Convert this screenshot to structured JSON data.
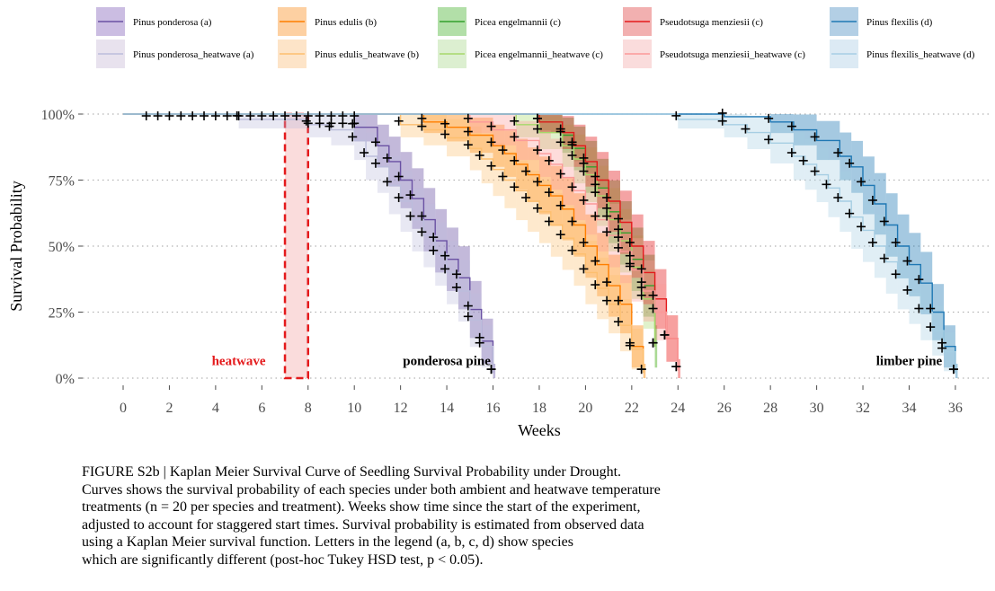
{
  "chart_data": {
    "type": "line",
    "subtype": "kaplan-meier step survival curves with confidence bands",
    "xlabel": "Weeks",
    "ylabel": "Survival Probability",
    "xlim": [
      -2,
      37.5
    ],
    "ylim": [
      0,
      1
    ],
    "x_ticks": [
      0,
      2,
      4,
      6,
      8,
      10,
      12,
      14,
      16,
      18,
      20,
      22,
      24,
      26,
      28,
      30,
      32,
      34,
      36
    ],
    "y_ticks": [
      {
        "value": 0,
        "label": "0%"
      },
      {
        "value": 0.25,
        "label": "25%"
      },
      {
        "value": 0.5,
        "label": "50%"
      },
      {
        "value": 0.75,
        "label": "75%"
      },
      {
        "value": 1,
        "label": "100%"
      }
    ],
    "grid": "horizontal dotted",
    "legend_position": "top",
    "heatwave_window": {
      "start": 7.0,
      "end": 8.0,
      "label": "heatwave"
    },
    "annotations": [
      {
        "text": "heatwave",
        "x": 5.0,
        "y": 0.05,
        "color": "#e41a1c"
      },
      {
        "text": "ponderosa pine",
        "x": 14.0,
        "y": 0.05,
        "color": "#000000"
      },
      {
        "text": "limber pine",
        "x": 34.0,
        "y": 0.05,
        "color": "#000000"
      }
    ],
    "series": [
      {
        "name": "Pinus ponderosa (a)",
        "color": "#6a51a3",
        "treatment": "ambient",
        "x": [
          0,
          10,
          11,
          11.5,
          12,
          12.5,
          13,
          13.5,
          14,
          14.5,
          15,
          15.5,
          16
        ],
        "y": [
          1.0,
          0.95,
          0.88,
          0.82,
          0.75,
          0.68,
          0.6,
          0.52,
          0.45,
          0.38,
          0.26,
          0.14,
          0.02
        ]
      },
      {
        "name": "Pinus ponderosa_heatwave (a)",
        "color": "#bcbddc",
        "treatment": "heatwave",
        "x": [
          0,
          5,
          8,
          9,
          10,
          10.5,
          11,
          11.5,
          12,
          12.5,
          13,
          13.5,
          14,
          14.5,
          15,
          15.5,
          16
        ],
        "y": [
          1.0,
          0.98,
          0.96,
          0.94,
          0.9,
          0.84,
          0.8,
          0.73,
          0.67,
          0.6,
          0.54,
          0.47,
          0.4,
          0.33,
          0.22,
          0.12,
          0.02
        ]
      },
      {
        "name": "Pinus edulis (b)",
        "color": "#ff7f00",
        "treatment": "ambient",
        "x": [
          0,
          13,
          14,
          15,
          16,
          16.5,
          17,
          17.5,
          18,
          18.5,
          19,
          19.5,
          20,
          20.5,
          21,
          21.5,
          22,
          22.5
        ],
        "y": [
          1.0,
          0.97,
          0.95,
          0.92,
          0.88,
          0.85,
          0.81,
          0.77,
          0.73,
          0.69,
          0.64,
          0.58,
          0.5,
          0.43,
          0.35,
          0.28,
          0.12,
          0.02
        ]
      },
      {
        "name": "Pinus edulis_heatwave (b)",
        "color": "#fdbf6f",
        "treatment": "heatwave",
        "x": [
          0,
          12,
          13,
          14,
          15,
          15.5,
          16,
          16.5,
          17,
          17.5,
          18,
          18.5,
          19,
          19.5,
          20,
          20.5,
          21,
          21.5,
          22,
          22.5
        ],
        "y": [
          1.0,
          0.96,
          0.94,
          0.91,
          0.87,
          0.83,
          0.79,
          0.75,
          0.71,
          0.67,
          0.63,
          0.58,
          0.53,
          0.47,
          0.4,
          0.34,
          0.28,
          0.2,
          0.11,
          0.02
        ]
      },
      {
        "name": "Picea engelmannii (c)",
        "color": "#33a02c",
        "treatment": "ambient",
        "x": [
          0,
          18,
          19,
          19.5,
          20,
          20.5,
          21,
          21.5,
          22,
          22.5,
          23
        ],
        "y": [
          1.0,
          0.97,
          0.92,
          0.87,
          0.8,
          0.72,
          0.63,
          0.55,
          0.45,
          0.35,
          0.12
        ]
      },
      {
        "name": "Picea engelmannii_heatwave (c)",
        "color": "#a6d96a",
        "treatment": "heatwave",
        "x": [
          0,
          17,
          18,
          19,
          19.5,
          20,
          20.5,
          21,
          21.5,
          22,
          22.5,
          23
        ],
        "y": [
          1.0,
          0.96,
          0.93,
          0.88,
          0.83,
          0.77,
          0.69,
          0.6,
          0.52,
          0.42,
          0.3,
          0.12
        ]
      },
      {
        "name": "Pseudotsuga menziesii (c)",
        "color": "#e31a1c",
        "treatment": "ambient",
        "x": [
          0,
          18,
          19,
          19.5,
          20,
          20.5,
          21,
          21.5,
          22,
          22.5,
          23,
          23.5,
          24
        ],
        "y": [
          1.0,
          0.97,
          0.93,
          0.88,
          0.82,
          0.75,
          0.67,
          0.59,
          0.5,
          0.4,
          0.3,
          0.15,
          0.03
        ]
      },
      {
        "name": "Pseudotsuga menziesii_heatwave (c)",
        "color": "#fb9a99",
        "treatment": "heatwave",
        "x": [
          0,
          15,
          16,
          17,
          18,
          18.5,
          19,
          19.5,
          20,
          20.5,
          21,
          21.5,
          22,
          22.5,
          23,
          23.5,
          24
        ],
        "y": [
          1.0,
          0.97,
          0.94,
          0.9,
          0.85,
          0.81,
          0.76,
          0.71,
          0.66,
          0.6,
          0.54,
          0.48,
          0.41,
          0.33,
          0.25,
          0.15,
          0.03
        ]
      },
      {
        "name": "Pinus flexilis (d)",
        "color": "#1f78b4",
        "treatment": "ambient",
        "x": [
          0,
          26,
          28,
          29,
          30,
          31,
          31.5,
          32,
          32.5,
          33,
          33.5,
          34,
          34.5,
          35,
          35.5,
          36
        ],
        "y": [
          1.0,
          0.99,
          0.97,
          0.94,
          0.9,
          0.84,
          0.8,
          0.73,
          0.66,
          0.58,
          0.5,
          0.43,
          0.36,
          0.25,
          0.12,
          0.02
        ]
      },
      {
        "name": "Pinus flexilis_heatwave (d)",
        "color": "#a6cee3",
        "treatment": "heatwave",
        "x": [
          0,
          24,
          26,
          27,
          28,
          29,
          29.5,
          30,
          30.5,
          31,
          31.5,
          32,
          32.5,
          33,
          33.5,
          34,
          34.5,
          35,
          35.5,
          36
        ],
        "y": [
          1.0,
          0.98,
          0.96,
          0.93,
          0.89,
          0.84,
          0.81,
          0.77,
          0.72,
          0.67,
          0.61,
          0.56,
          0.5,
          0.44,
          0.38,
          0.32,
          0.25,
          0.18,
          0.1,
          0.02
        ]
      }
    ]
  },
  "legend": {
    "items": [
      {
        "label": "Pinus ponderosa (a)",
        "color": "#6a51a3",
        "fill": "#cbbde2"
      },
      {
        "label": "Pinus edulis (b)",
        "color": "#ff7f00",
        "fill": "#fdd0a2"
      },
      {
        "label": "Picea engelmannii (c)",
        "color": "#33a02c",
        "fill": "#b2dfa8"
      },
      {
        "label": "Pseudotsuga menziesii (c)",
        "color": "#e31a1c",
        "fill": "#f2b0b0"
      },
      {
        "label": "Pinus flexilis (d)",
        "color": "#1f78b4",
        "fill": "#b3cfe5"
      },
      {
        "label": "Pinus ponderosa_heatwave (a)",
        "color": "#bcbddc",
        "fill": "#e8e2ee"
      },
      {
        "label": "Pinus edulis_heatwave (b)",
        "color": "#fdbf6f",
        "fill": "#fde4c8"
      },
      {
        "label": "Picea engelmannii_heatwave (c)",
        "color": "#a6d96a",
        "fill": "#dcefd0"
      },
      {
        "label": "Pseudotsuga menziesii_heatwave (c)",
        "color": "#fb9a99",
        "fill": "#fadcdc"
      },
      {
        "label": "Pinus flexilis_heatwave (d)",
        "color": "#a6cee3",
        "fill": "#dceaf4"
      }
    ]
  },
  "caption": {
    "lines": [
      "FIGURE S2b | Kaplan Meier Survival Curve of Seedling Survival Probability under Drought.",
      "Curves shows the survival probability of each species under both ambient and heatwave temperature",
      "treatments (n = 20 per species and treatment). Weeks show time since the start of the experiment,",
      "adjusted to account for staggered start times. Survival probability is estimated from observed data",
      "using a Kaplan Meier survival function. Letters in the legend (a, b, c, d) show species",
      "which are significantly different (post-hoc Tukey HSD test, p < 0.05)."
    ]
  }
}
